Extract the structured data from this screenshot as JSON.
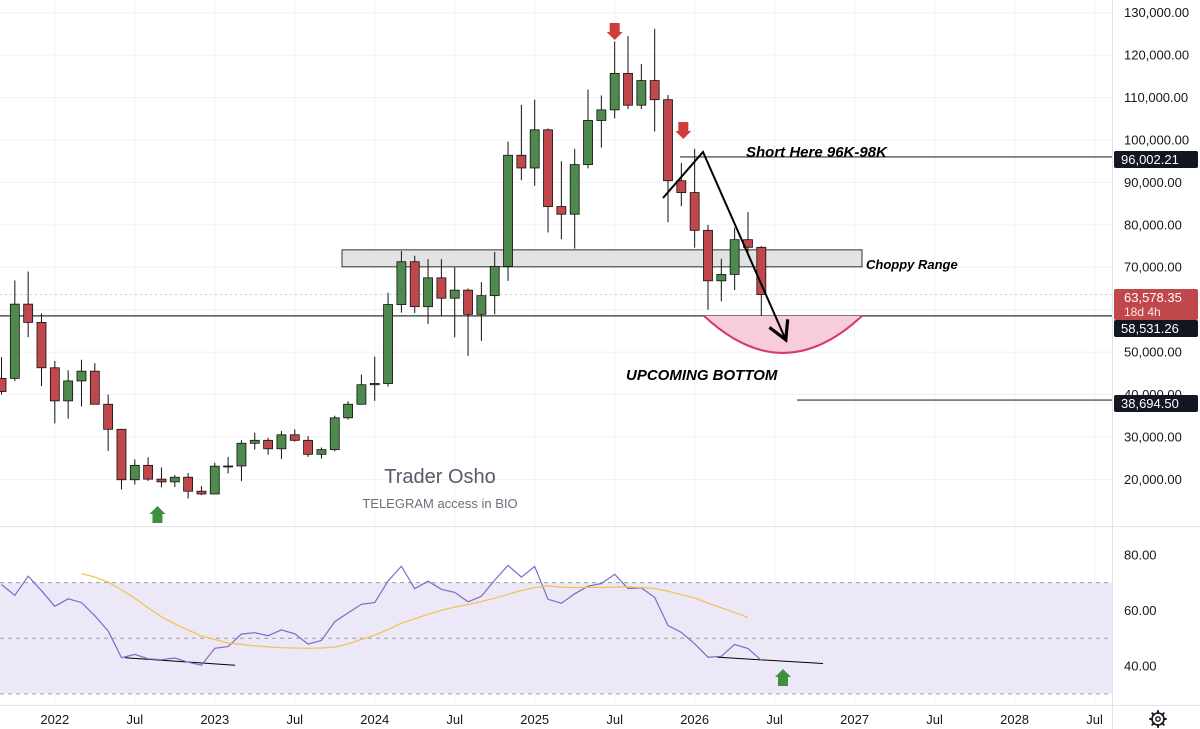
{
  "colors": {
    "up_body": "#4e8a4e",
    "down_body": "#c0484c",
    "wick": "#111111",
    "rsi_line": "#7e6bc8",
    "rsi_ma": "#f2c14e",
    "rsi_band": "#ece8f7",
    "marker_red": "#d03b3b",
    "marker_green": "#3f8f3f",
    "bowl": "#d6386a",
    "bowl_fill": "#f6cdd9",
    "price_badge": "#c0484c",
    "dark_badge": "#131722"
  },
  "annotations": {
    "short_label": "Short Here 96K-98K",
    "choppy_label": "Choppy Range",
    "bottom_label": "UPCOMING BOTTOM",
    "watermark_title": "Trader Osho",
    "watermark_sub": "TELEGRAM access in BIO"
  },
  "price_badges": {
    "current_price": "63,578.35",
    "countdown": "18d 4h",
    "level_96k": "96,002.21",
    "level_58k": "58,531.26",
    "level_38k": "38,694.50"
  },
  "icons": {
    "settings": "gear-icon",
    "arrows": [
      "arrow-down-icon",
      "arrow-down-icon",
      "arrow-up-icon",
      "arrow-up-icon"
    ]
  },
  "chart_data": [
    {
      "type": "candlestick",
      "title": "",
      "interval": "1M",
      "ylim": [
        9000,
        133000
      ],
      "y_ticks": [
        20000,
        30000,
        40000,
        50000,
        60000,
        70000,
        80000,
        90000,
        100000,
        110000,
        120000,
        130000
      ],
      "y_tick_labels": [
        "20,000.00",
        "30,000.00",
        "40,000.00",
        "50,000.00",
        "60,000.00",
        "70,000.00",
        "80,000.00",
        "90,000.00",
        "100,000.00",
        "110,000.00",
        "120,000.00",
        "130,000.00"
      ],
      "x_ticks": [
        "2022",
        "Jul",
        "2023",
        "Jul",
        "2024",
        "Jul",
        "2025",
        "Jul",
        "2026",
        "Jul",
        "2027",
        "Jul",
        "2028",
        "Jul"
      ],
      "x_tick_dates": [
        "2022-01",
        "2022-07",
        "2023-01",
        "2023-07",
        "2024-01",
        "2024-07",
        "2025-01",
        "2025-07",
        "2026-01",
        "2026-07",
        "2027-01",
        "2027-07",
        "2028-01",
        "2028-07"
      ],
      "candles": [
        {
          "date": "2021-09",
          "open": 43800,
          "high": 48800,
          "low": 40000,
          "close": 40700
        },
        {
          "date": "2021-10",
          "open": 43800,
          "high": 66900,
          "low": 43200,
          "close": 61300
        },
        {
          "date": "2021-11",
          "open": 61300,
          "high": 69000,
          "low": 53500,
          "close": 57000
        },
        {
          "date": "2021-12",
          "open": 57000,
          "high": 59100,
          "low": 42000,
          "close": 46300
        },
        {
          "date": "2022-01",
          "open": 46300,
          "high": 47900,
          "low": 33200,
          "close": 38500
        },
        {
          "date": "2022-02",
          "open": 38500,
          "high": 45700,
          "low": 34300,
          "close": 43200
        },
        {
          "date": "2022-03",
          "open": 43200,
          "high": 48200,
          "low": 37200,
          "close": 45500
        },
        {
          "date": "2022-04",
          "open": 45500,
          "high": 47400,
          "low": 37700,
          "close": 37700
        },
        {
          "date": "2022-05",
          "open": 37700,
          "high": 40000,
          "low": 26700,
          "close": 31800
        },
        {
          "date": "2022-06",
          "open": 31800,
          "high": 31900,
          "low": 17600,
          "close": 19900
        },
        {
          "date": "2022-07",
          "open": 19900,
          "high": 24700,
          "low": 18800,
          "close": 23300
        },
        {
          "date": "2022-08",
          "open": 23300,
          "high": 25200,
          "low": 19600,
          "close": 20050
        },
        {
          "date": "2022-09",
          "open": 20050,
          "high": 22800,
          "low": 18100,
          "close": 19400
        },
        {
          "date": "2022-10",
          "open": 19400,
          "high": 21000,
          "low": 18200,
          "close": 20500
        },
        {
          "date": "2022-11",
          "open": 20500,
          "high": 21500,
          "low": 15500,
          "close": 17200
        },
        {
          "date": "2022-12",
          "open": 17200,
          "high": 18400,
          "low": 16300,
          "close": 16550
        },
        {
          "date": "2023-01",
          "open": 16550,
          "high": 23900,
          "low": 16500,
          "close": 23100
        },
        {
          "date": "2023-02",
          "open": 23100,
          "high": 25300,
          "low": 21400,
          "close": 23150
        },
        {
          "date": "2023-03",
          "open": 23150,
          "high": 29200,
          "low": 19600,
          "close": 28500
        },
        {
          "date": "2023-04",
          "open": 28500,
          "high": 31000,
          "low": 27000,
          "close": 29200
        },
        {
          "date": "2023-05",
          "open": 29200,
          "high": 29800,
          "low": 25800,
          "close": 27200
        },
        {
          "date": "2023-06",
          "open": 27200,
          "high": 31400,
          "low": 24800,
          "close": 30500
        },
        {
          "date": "2023-07",
          "open": 30500,
          "high": 31800,
          "low": 28900,
          "close": 29200
        },
        {
          "date": "2023-08",
          "open": 29200,
          "high": 30200,
          "low": 25300,
          "close": 25900
        },
        {
          "date": "2023-09",
          "open": 25900,
          "high": 27500,
          "low": 24900,
          "close": 27000
        },
        {
          "date": "2023-10",
          "open": 27000,
          "high": 35000,
          "low": 26600,
          "close": 34500
        },
        {
          "date": "2023-11",
          "open": 34500,
          "high": 38400,
          "low": 34100,
          "close": 37700
        },
        {
          "date": "2023-12",
          "open": 37700,
          "high": 44700,
          "low": 37600,
          "close": 42300
        },
        {
          "date": "2024-01",
          "open": 42300,
          "high": 48900,
          "low": 38500,
          "close": 42600
        },
        {
          "date": "2024-02",
          "open": 42600,
          "high": 64000,
          "low": 41900,
          "close": 61200
        },
        {
          "date": "2024-03",
          "open": 61200,
          "high": 73800,
          "low": 59300,
          "close": 71300
        },
        {
          "date": "2024-04",
          "open": 71300,
          "high": 72700,
          "low": 59200,
          "close": 60700
        },
        {
          "date": "2024-05",
          "open": 60700,
          "high": 71900,
          "low": 56600,
          "close": 67500
        },
        {
          "date": "2024-06",
          "open": 67500,
          "high": 71900,
          "low": 58500,
          "close": 62700
        },
        {
          "date": "2024-07",
          "open": 62700,
          "high": 70000,
          "low": 53500,
          "close": 64600
        },
        {
          "date": "2024-08",
          "open": 64600,
          "high": 65000,
          "low": 49100,
          "close": 58900
        },
        {
          "date": "2024-09",
          "open": 58900,
          "high": 66500,
          "low": 52600,
          "close": 63300
        },
        {
          "date": "2024-10",
          "open": 63300,
          "high": 73600,
          "low": 58900,
          "close": 70200
        },
        {
          "date": "2024-11",
          "open": 70200,
          "high": 99600,
          "low": 66800,
          "close": 96400
        },
        {
          "date": "2024-12",
          "open": 96400,
          "high": 108300,
          "low": 90500,
          "close": 93400
        },
        {
          "date": "2025-01",
          "open": 93400,
          "high": 109500,
          "low": 89200,
          "close": 102400
        },
        {
          "date": "2025-02",
          "open": 102400,
          "high": 102700,
          "low": 78200,
          "close": 84300
        },
        {
          "date": "2025-03",
          "open": 84300,
          "high": 95000,
          "low": 76600,
          "close": 82500
        },
        {
          "date": "2025-04",
          "open": 82500,
          "high": 97900,
          "low": 74400,
          "close": 94200
        },
        {
          "date": "2025-05",
          "open": 94200,
          "high": 111900,
          "low": 93300,
          "close": 104600
        },
        {
          "date": "2025-06",
          "open": 104600,
          "high": 110500,
          "low": 98200,
          "close": 107100
        },
        {
          "date": "2025-07",
          "open": 107100,
          "high": 123200,
          "low": 105100,
          "close": 115700
        },
        {
          "date": "2025-08",
          "open": 115700,
          "high": 124500,
          "low": 107300,
          "close": 108200
        },
        {
          "date": "2025-09",
          "open": 108200,
          "high": 117900,
          "low": 107300,
          "close": 114000
        },
        {
          "date": "2025-10",
          "open": 114000,
          "high": 126200,
          "low": 102000,
          "close": 109500
        },
        {
          "date": "2025-11",
          "open": 109500,
          "high": 110600,
          "low": 80600,
          "close": 90400
        },
        {
          "date": "2025-12",
          "open": 90400,
          "high": 94600,
          "low": 84400,
          "close": 87600
        },
        {
          "date": "2026-01",
          "open": 87600,
          "high": 97900,
          "low": 74600,
          "close": 78700
        },
        {
          "date": "2026-02",
          "open": 78700,
          "high": 80000,
          "low": 60000,
          "close": 66800
        },
        {
          "date": "2026-03",
          "open": 66800,
          "high": 72000,
          "low": 62000,
          "close": 68300
        },
        {
          "date": "2026-04",
          "open": 68300,
          "high": 79300,
          "low": 64600,
          "close": 76500
        },
        {
          "date": "2026-05",
          "open": 76500,
          "high": 83000,
          "low": 72600,
          "close": 74700
        },
        {
          "date": "2026-06",
          "open": 74700,
          "high": 75000,
          "low": 58500,
          "close": 63578
        }
      ],
      "horizontal_lines": [
        96002.21,
        58531.26,
        38694.5
      ],
      "choppy_range": [
        70100,
        74100
      ],
      "current_price": 63578.35
    },
    {
      "type": "line",
      "title": "",
      "ylim": [
        26,
        90
      ],
      "y_ticks": [
        40,
        60,
        80
      ],
      "y_tick_labels": [
        "40.00",
        "60.00",
        "80.00"
      ],
      "bands": [
        30,
        50,
        70
      ],
      "series": [
        {
          "values": [
            69.3,
            65.4,
            72.3,
            67.1,
            61.5,
            64.2,
            62.8,
            58.1,
            52.6,
            43.0,
            44.2,
            42.6,
            42.3,
            42.9,
            41.4,
            40.3,
            46.4,
            47.0,
            51.5,
            52.0,
            50.9,
            53.0,
            51.6,
            47.9,
            49.2,
            56.0,
            59.1,
            62.2,
            62.8,
            70.6,
            75.9,
            67.8,
            70.5,
            67.6,
            66.5,
            63.1,
            65.1,
            70.9,
            76.2,
            72.0,
            75.8,
            64.0,
            62.6,
            66.0,
            68.7,
            69.7,
            73.0,
            67.9,
            68.1,
            64.7,
            54.6,
            52.1,
            48.0,
            43.2,
            43.5,
            47.8,
            46.3,
            42.1
          ]
        },
        {
          "values": [
            null,
            null,
            null,
            null,
            null,
            null,
            73.2,
            72.0,
            70.2,
            67.4,
            64.4,
            61.0,
            57.7,
            55.2,
            53.0,
            50.8,
            49.6,
            48.3,
            47.8,
            47.3,
            46.9,
            46.6,
            46.5,
            46.4,
            46.5,
            46.8,
            48.0,
            49.6,
            51.1,
            53.2,
            55.4,
            57.0,
            58.6,
            60.0,
            61.2,
            62.1,
            63.2,
            64.4,
            65.8,
            67.2,
            68.2,
            68.8,
            68.4,
            68.2,
            68.3,
            68.3,
            68.4,
            68.5,
            68.2,
            67.9,
            66.9,
            65.7,
            64.5,
            62.6,
            61.0,
            59.3,
            57.5,
            null
          ]
        }
      ]
    }
  ]
}
